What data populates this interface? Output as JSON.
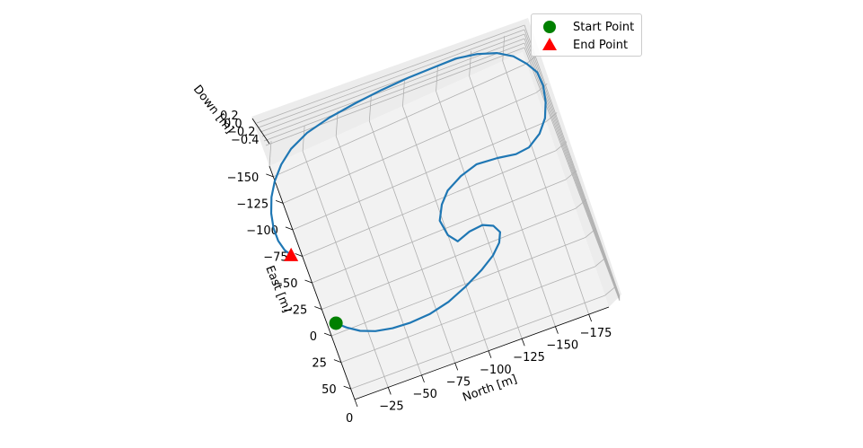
{
  "chart_data": {
    "type": "line3d",
    "title": "",
    "north_axis": {
      "label": "North [m]",
      "ticks": [
        "0",
        "−25",
        "−50",
        "−75",
        "−100",
        "−125",
        "−150",
        "−175"
      ]
    },
    "east_axis": {
      "label": "East [m]",
      "ticks": [
        "50",
        "25",
        "0",
        "−25",
        "−50",
        "−75",
        "−100",
        "−125",
        "−150"
      ]
    },
    "down_axis": {
      "label": "Down [m]",
      "ticks": [
        "0.2",
        "0.0",
        "−0.2",
        "−0.4"
      ]
    },
    "series": [
      {
        "values_north": [
          -6,
          -12,
          -20,
          -30,
          -42,
          -55,
          -70,
          -85,
          -100,
          -114,
          -125,
          -132,
          -135,
          -132,
          -125,
          -115,
          -105,
          -100,
          -98,
          -103,
          -110,
          -122,
          -135,
          -150,
          -163,
          -173,
          -183,
          -190,
          -194,
          -196,
          -195,
          -190,
          -183,
          -173,
          -160,
          -145,
          -128,
          -110,
          -90,
          -70,
          -50,
          -32,
          -18,
          -8,
          0,
          6,
          10,
          12,
          12,
          10,
          7
        ],
        "values_east": [
          -9,
          -2,
          5,
          10,
          13,
          14,
          13,
          9,
          2,
          -6,
          -14,
          -22,
          -30,
          -37,
          -41,
          -40,
          -36,
          -44,
          -58,
          -70,
          -79,
          -86,
          -90,
          -88,
          -85,
          -86,
          -93,
          -103,
          -115,
          -128,
          -140,
          -150,
          -160,
          -168,
          -174,
          -178,
          -179,
          -180,
          -180,
          -179,
          -177,
          -173,
          -166,
          -157,
          -146,
          -134,
          -121,
          -108,
          -96,
          -86,
          -80
        ]
      }
    ],
    "start_point": {
      "north": -6,
      "east": -9
    },
    "end_point": {
      "north": 7,
      "east": -80
    },
    "legend": {
      "placement": "top-right",
      "entries": [
        "Start Point",
        "End Point"
      ]
    },
    "colors": {
      "trajectory": "#1f77b4",
      "start": "#008000",
      "end": "#ff0000",
      "grid": "#b0b0b0",
      "pane": "#f2f2f2"
    },
    "grid": true
  }
}
